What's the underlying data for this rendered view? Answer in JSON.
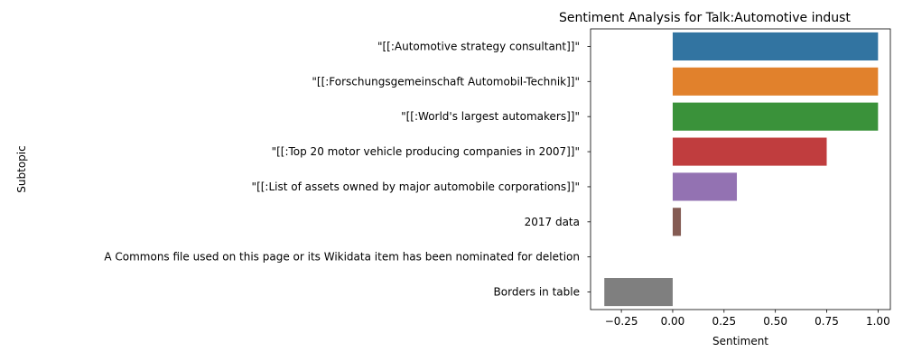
{
  "chart_data": {
    "type": "bar",
    "orientation": "horizontal",
    "title": "Sentiment Analysis for Talk:Automotive indust",
    "xlabel": "Sentiment",
    "ylabel": "Subtopic",
    "xlim": [
      -0.4,
      1.06
    ],
    "xticks": [
      -0.25,
      0.0,
      0.25,
      0.5,
      0.75,
      1.0
    ],
    "xtick_labels": [
      "−0.25",
      "0.00",
      "0.25",
      "0.50",
      "0.75",
      "1.00"
    ],
    "categories": [
      "\"[[:Automotive strategy consultant]]\"",
      "\"[[:Forschungsgemeinschaft Automobil-Technik]]\"",
      "\"[[:World's largest automakers]]\"",
      "\"[[:Top 20 motor vehicle producing companies in 2007]]\"",
      "\"[[:List of assets owned by major automobile corporations]]\"",
      "2017 data",
      "A Commons file used on this page or its Wikidata item has been nominated for deletion",
      "Borders in table"
    ],
    "values": [
      1.0,
      1.0,
      1.0,
      0.75,
      0.3125,
      0.04,
      0.0,
      -0.333
    ],
    "colors": [
      "#3274a1",
      "#e1812c",
      "#3a923a",
      "#c03d3e",
      "#9372b2",
      "#845b53",
      "#d684bd",
      "#7f7f7f"
    ],
    "grid": false,
    "legend": "none"
  }
}
